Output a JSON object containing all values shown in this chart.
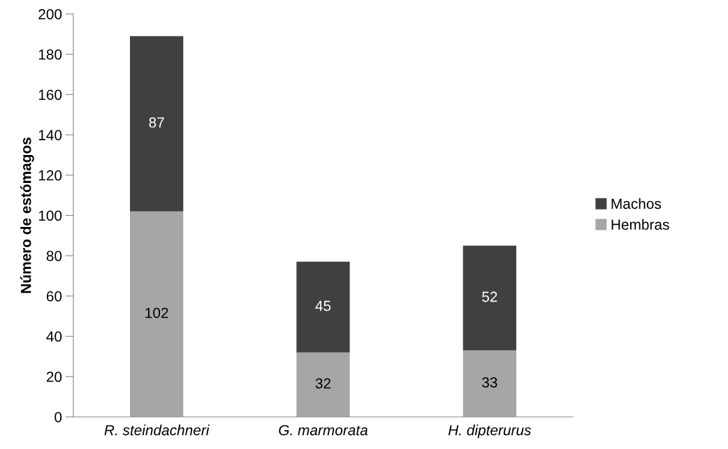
{
  "chart_data": {
    "type": "bar",
    "stacked": true,
    "ylabel": "Número de estómagos",
    "categories": [
      "R. steindachneri",
      "G. marmorata",
      "H. dipterurus"
    ],
    "series": [
      {
        "name": "Hembras",
        "color": "#a6a6a6",
        "values": [
          102,
          32,
          33
        ]
      },
      {
        "name": "Machos",
        "color": "#404040",
        "values": [
          87,
          45,
          52
        ]
      }
    ],
    "ylim": [
      0,
      200
    ],
    "yticks": [
      0,
      20,
      40,
      60,
      80,
      100,
      120,
      140,
      160,
      180,
      200
    ],
    "grid": false,
    "legend": "right",
    "data_labels": true
  }
}
